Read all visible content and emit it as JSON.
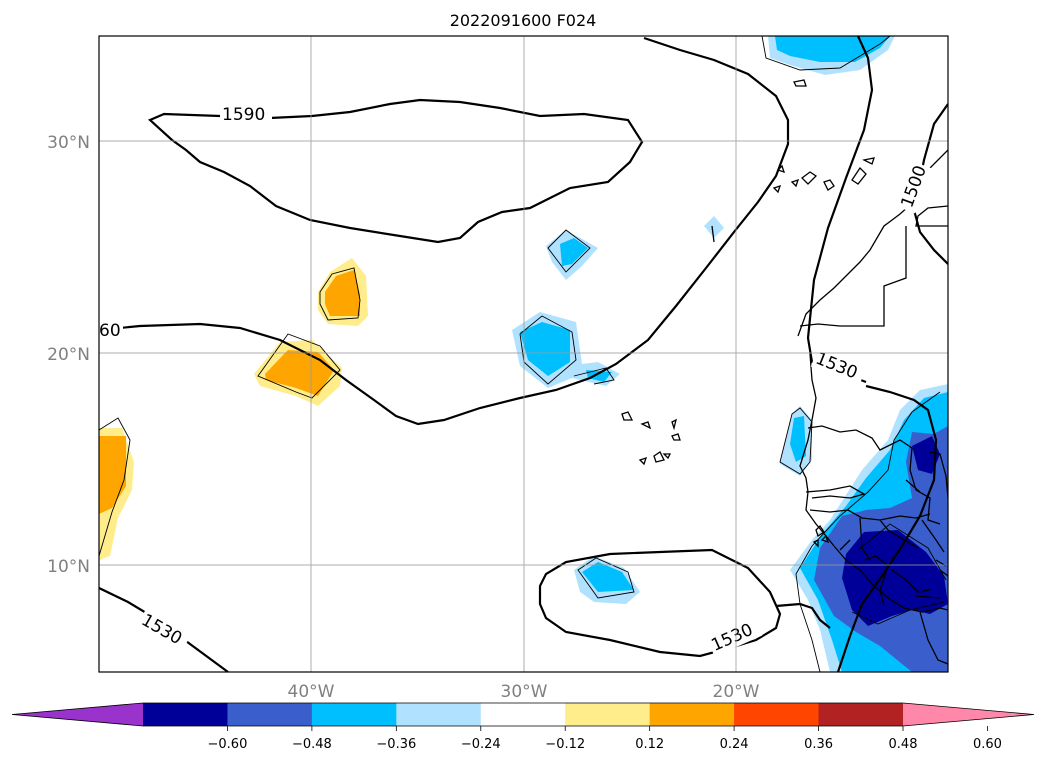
{
  "title": "2022091600 F024",
  "map": {
    "lat_labels": [
      "30°N",
      "20°N",
      "10°N"
    ],
    "lon_labels": [
      "40°W",
      "30°W",
      "20°W"
    ],
    "grid": true,
    "contour_labels": [
      "1590",
      "1530",
      "1530",
      "1530",
      "1500",
      "60"
    ]
  },
  "colorbar": {
    "colors": [
      "#9933cc",
      "#000099",
      "#3a5fcd",
      "#00bfff",
      "#b0e2ff",
      "#ffffff",
      "#ffec8b",
      "#ffa500",
      "#ff4500",
      "#b22222",
      "#ff88aa"
    ],
    "tick_labels": [
      "−0.60",
      "−0.48",
      "−0.36",
      "−0.24",
      "−0.12",
      "0.12",
      "0.24",
      "0.36",
      "0.48",
      "0.60"
    ],
    "extend": "both"
  }
}
